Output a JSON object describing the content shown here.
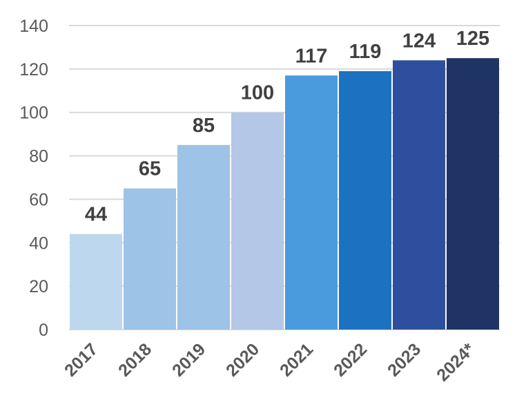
{
  "chart_data": {
    "type": "bar",
    "title": "",
    "xlabel": "",
    "ylabel": "",
    "categories": [
      "2017",
      "2018",
      "2019",
      "2020",
      "2021",
      "2022",
      "2023",
      "2024*"
    ],
    "values": [
      44,
      65,
      85,
      100,
      117,
      119,
      124,
      125
    ],
    "data_labels": [
      "44",
      "65",
      "85",
      "100",
      "117",
      "119",
      "124",
      "125"
    ],
    "ylim": [
      0,
      140
    ],
    "yticks": [
      0,
      20,
      40,
      60,
      80,
      100,
      120,
      140
    ],
    "ytick_labels": [
      "0",
      "20",
      "40",
      "60",
      "80",
      "100",
      "120",
      "140"
    ],
    "grid": true,
    "legend": "none",
    "colors": [
      "#bdd7ee",
      "#9dc3e6",
      "#9dc3e6",
      "#b4c7e7",
      "#4a9ade",
      "#1b72c0",
      "#2e4f9e",
      "#1f3464"
    ]
  }
}
